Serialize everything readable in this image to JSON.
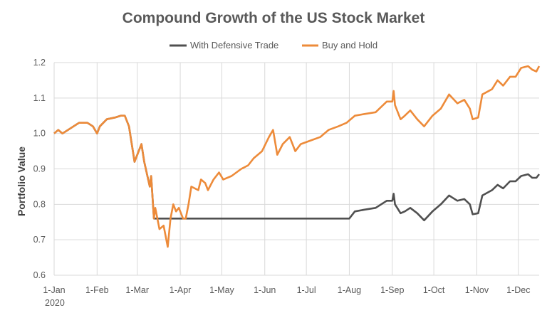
{
  "chart_data": {
    "type": "line",
    "title": "Compound Growth of the US Stock Market",
    "xlabel": "",
    "ylabel": "Portfolio Value",
    "x_unit": "day of year 2020",
    "xlim": [
      0,
      350
    ],
    "ylim": [
      0.6,
      1.2
    ],
    "yticks": [
      "0.6",
      "0.7",
      "0.8",
      "0.9",
      "1.0",
      "1.1",
      "1.2"
    ],
    "ytick_values": [
      0.6,
      0.7,
      0.8,
      0.9,
      1.0,
      1.1,
      1.2
    ],
    "xticks": [
      "1-Jan",
      "1-Feb",
      "1-Mar",
      "1-Apr",
      "1-May",
      "1-Jun",
      "1-Jul",
      "1-Aug",
      "1-Sep",
      "1-Oct",
      "1-Nov",
      "1-Dec"
    ],
    "xtick_days": [
      0,
      31,
      60,
      91,
      121,
      152,
      182,
      213,
      244,
      274,
      305,
      335
    ],
    "xtick_sublabel": "2020",
    "grid": true,
    "legend_position": "top",
    "series": [
      {
        "name": "With Defensive Trade",
        "color": "#505050",
        "x": [
          0,
          3,
          6,
          10,
          14,
          18,
          24,
          28,
          31,
          33,
          38,
          44,
          48,
          51,
          54,
          58,
          61,
          63,
          65,
          69,
          70,
          72,
          100,
          150,
          213,
          217,
          224,
          232,
          240,
          244,
          245,
          246,
          250,
          253,
          257,
          262,
          267,
          273,
          279,
          285,
          291,
          296,
          300,
          302,
          306,
          309,
          316,
          320,
          324,
          329,
          333,
          337,
          342,
          345,
          348,
          350
        ],
        "values": [
          1.0,
          1.01,
          1.0,
          1.01,
          1.02,
          1.03,
          1.03,
          1.02,
          1.0,
          1.02,
          1.04,
          1.045,
          1.05,
          1.05,
          1.02,
          0.92,
          0.95,
          0.97,
          0.92,
          0.85,
          0.88,
          0.76,
          0.76,
          0.76,
          0.76,
          0.78,
          0.785,
          0.79,
          0.81,
          0.81,
          0.83,
          0.8,
          0.775,
          0.78,
          0.79,
          0.775,
          0.755,
          0.78,
          0.8,
          0.825,
          0.81,
          0.815,
          0.8,
          0.772,
          0.775,
          0.825,
          0.84,
          0.855,
          0.845,
          0.865,
          0.865,
          0.88,
          0.885,
          0.875,
          0.875,
          0.885
        ]
      },
      {
        "name": "Buy and Hold",
        "color": "#ED8B3A",
        "x": [
          0,
          3,
          6,
          10,
          14,
          18,
          24,
          28,
          31,
          33,
          38,
          44,
          48,
          51,
          54,
          58,
          61,
          63,
          65,
          69,
          70,
          72,
          73,
          76,
          79,
          82,
          84,
          86,
          88,
          90,
          93,
          95,
          97,
          99,
          104,
          106,
          109,
          111,
          115,
          119,
          122,
          128,
          135,
          140,
          144,
          150,
          155,
          158,
          161,
          165,
          170,
          174,
          178,
          185,
          192,
          198,
          205,
          211,
          217,
          224,
          232,
          240,
          244,
          245,
          246,
          250,
          253,
          257,
          262,
          267,
          273,
          279,
          285,
          291,
          296,
          300,
          302,
          306,
          309,
          316,
          320,
          324,
          329,
          333,
          337,
          342,
          345,
          348,
          350
        ],
        "values": [
          1.0,
          1.01,
          1.0,
          1.01,
          1.02,
          1.03,
          1.03,
          1.02,
          1.0,
          1.02,
          1.04,
          1.045,
          1.05,
          1.05,
          1.02,
          0.92,
          0.95,
          0.97,
          0.92,
          0.85,
          0.88,
          0.76,
          0.79,
          0.73,
          0.74,
          0.68,
          0.76,
          0.8,
          0.78,
          0.79,
          0.76,
          0.76,
          0.8,
          0.85,
          0.84,
          0.87,
          0.86,
          0.84,
          0.87,
          0.89,
          0.87,
          0.88,
          0.9,
          0.91,
          0.93,
          0.95,
          0.99,
          1.01,
          0.94,
          0.97,
          0.99,
          0.95,
          0.97,
          0.98,
          0.99,
          1.01,
          1.02,
          1.03,
          1.05,
          1.055,
          1.06,
          1.09,
          1.09,
          1.12,
          1.08,
          1.04,
          1.05,
          1.065,
          1.04,
          1.02,
          1.05,
          1.07,
          1.11,
          1.085,
          1.095,
          1.07,
          1.04,
          1.045,
          1.11,
          1.125,
          1.15,
          1.135,
          1.16,
          1.16,
          1.185,
          1.19,
          1.18,
          1.175,
          1.19
        ]
      }
    ]
  }
}
